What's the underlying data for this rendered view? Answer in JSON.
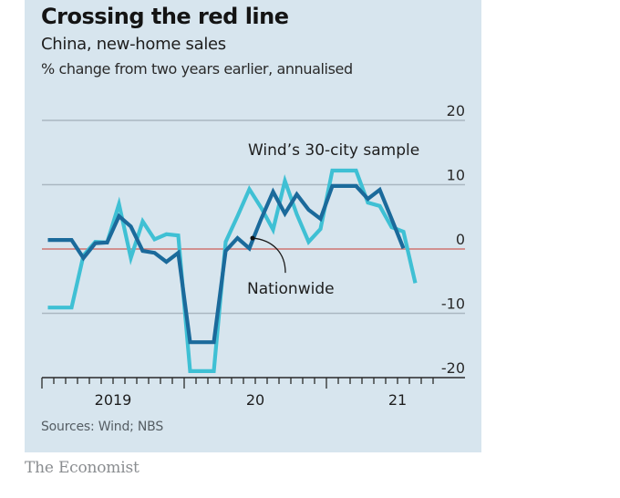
{
  "header": {
    "title": "Crossing the red line",
    "subtitle": "China, new-home sales",
    "units": "% change from two years earlier, annualised"
  },
  "footer": {
    "source": "Sources: Wind; NBS",
    "brand": "The Economist"
  },
  "colors": {
    "background": "#d7e5ee",
    "nationwide": "#1b6a9b",
    "wind30": "#3fc0d4",
    "zero_line": "#cf7470",
    "grid": "#aab7c1",
    "text": "#1e1e1e"
  },
  "chart_data": {
    "type": "line",
    "title": "Crossing the red line",
    "subtitle": "China, new-home sales",
    "ylabel": "% change from two years earlier, annualised",
    "xlabel": "",
    "ylim": [
      -20,
      20
    ],
    "yticks": [
      20,
      10,
      0,
      -10,
      -20
    ],
    "ytick_labels": [
      "20",
      "10",
      "0",
      "-10",
      "-20"
    ],
    "y_axis_position": "right",
    "grid": true,
    "reference_line": {
      "value": 0,
      "color": "#cf7470"
    },
    "x_start": "2019-01",
    "x_unit": "month",
    "x_month_count": 33,
    "xtick_labels": [
      {
        "label": "2019",
        "year_start_month_index": 0
      },
      {
        "label": "20",
        "year_start_month_index": 12
      },
      {
        "label": "21",
        "year_start_month_index": 24
      }
    ],
    "series": [
      {
        "name": "Nationwide",
        "color": "#1b6a9b",
        "annotation": "Nationwide",
        "annotation_point_index": 17,
        "values": [
          1.4,
          1.4,
          1.4,
          -1.4,
          0.9,
          1.0,
          5.1,
          3.5,
          -0.3,
          -0.6,
          -2.0,
          -0.6,
          -14.5,
          -14.5,
          -14.5,
          -0.3,
          1.7,
          0.1,
          4.7,
          8.9,
          5.5,
          8.5,
          6.1,
          4.7,
          9.8,
          9.8,
          9.8,
          7.8,
          9.2,
          4.7,
          0.1
        ]
      },
      {
        "name": "Wind's 30-city sample",
        "color": "#3fc0d4",
        "annotation": "Wind’s 30-city sample",
        "values": [
          -9.1,
          -9.1,
          -9.1,
          -1.0,
          1.1,
          1.0,
          7.0,
          -1.4,
          4.3,
          1.5,
          2.3,
          2.1,
          -19.0,
          -19.0,
          -19.0,
          1.1,
          5.1,
          9.3,
          6.4,
          3.0,
          10.6,
          5.4,
          1.1,
          3.1,
          12.2,
          12.2,
          12.2,
          7.2,
          6.7,
          3.4,
          2.7,
          -5.3
        ]
      }
    ]
  }
}
